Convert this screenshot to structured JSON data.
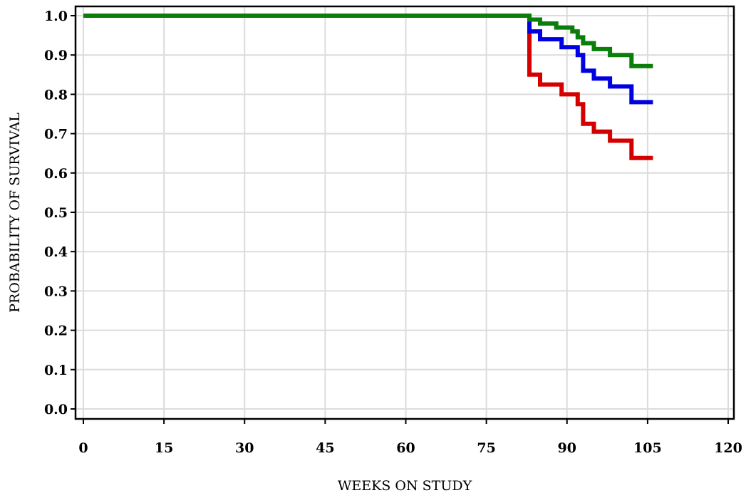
{
  "chart_data": {
    "type": "line",
    "step": true,
    "title": "",
    "xlabel": "WEEKS ON STUDY",
    "ylabel": "PROBABILITY OF SURVIVAL",
    "xlim": [
      0,
      120
    ],
    "ylim": [
      0.0,
      1.0
    ],
    "xticks": [
      0,
      15,
      30,
      45,
      60,
      75,
      90,
      105,
      120
    ],
    "xtick_labels": [
      "0",
      "15",
      "30",
      "45",
      "60",
      "75",
      "90",
      "105",
      "120"
    ],
    "yticks": [
      0.0,
      0.1,
      0.2,
      0.3,
      0.4,
      0.5,
      0.6,
      0.7,
      0.8,
      0.9,
      1.0
    ],
    "ytick_labels": [
      "0.0",
      "0.1",
      "0.2",
      "0.3",
      "0.4",
      "0.5",
      "0.6",
      "0.7",
      "0.8",
      "0.9",
      "1.0"
    ],
    "grid": true,
    "legend": "none",
    "series": [
      {
        "color": "#d40000",
        "points": [
          [
            0,
            1.0
          ],
          [
            83,
            1.0
          ],
          [
            83,
            0.85
          ],
          [
            85,
            0.85
          ],
          [
            85,
            0.825
          ],
          [
            89,
            0.825
          ],
          [
            89,
            0.8
          ],
          [
            92,
            0.8
          ],
          [
            92,
            0.775
          ],
          [
            93,
            0.775
          ],
          [
            93,
            0.725
          ],
          [
            95,
            0.725
          ],
          [
            95,
            0.705
          ],
          [
            98,
            0.705
          ],
          [
            98,
            0.682
          ],
          [
            102,
            0.682
          ],
          [
            102,
            0.638
          ],
          [
            106,
            0.638
          ]
        ]
      },
      {
        "color": "#0000e0",
        "points": [
          [
            0,
            1.0
          ],
          [
            83,
            1.0
          ],
          [
            83,
            0.96
          ],
          [
            85,
            0.96
          ],
          [
            85,
            0.94
          ],
          [
            89,
            0.94
          ],
          [
            89,
            0.92
          ],
          [
            92,
            0.92
          ],
          [
            92,
            0.9
          ],
          [
            93,
            0.9
          ],
          [
            93,
            0.86
          ],
          [
            95,
            0.86
          ],
          [
            95,
            0.84
          ],
          [
            98,
            0.84
          ],
          [
            98,
            0.82
          ],
          [
            102,
            0.82
          ],
          [
            102,
            0.78
          ],
          [
            106,
            0.78
          ]
        ]
      },
      {
        "color": "#0a7d0a",
        "points": [
          [
            0,
            1.0
          ],
          [
            83,
            1.0
          ],
          [
            83,
            0.99
          ],
          [
            85,
            0.99
          ],
          [
            85,
            0.98
          ],
          [
            88,
            0.98
          ],
          [
            88,
            0.97
          ],
          [
            91,
            0.97
          ],
          [
            91,
            0.96
          ],
          [
            92,
            0.96
          ],
          [
            92,
            0.945
          ],
          [
            93,
            0.945
          ],
          [
            93,
            0.93
          ],
          [
            95,
            0.93
          ],
          [
            95,
            0.915
          ],
          [
            98,
            0.915
          ],
          [
            98,
            0.9
          ],
          [
            102,
            0.9
          ],
          [
            102,
            0.872
          ],
          [
            106,
            0.872
          ]
        ]
      }
    ]
  }
}
